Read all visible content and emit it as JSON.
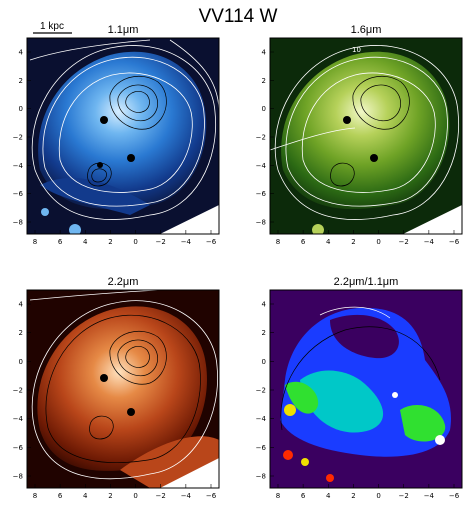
{
  "figure": {
    "title": "VV114 W",
    "scale_bar_label": "1 kpc",
    "contour_label": "10"
  },
  "panels": [
    {
      "id": "p1",
      "title": "1.1μm",
      "colormap": [
        "#0a1030",
        "#123a8c",
        "#2a79d2",
        "#6fb6f0",
        "#d8eeff"
      ]
    },
    {
      "id": "p2",
      "title": "1.6μm",
      "colormap": [
        "#0c2a0a",
        "#2c6a14",
        "#6fa326",
        "#b6d15a",
        "#f2f8c8"
      ]
    },
    {
      "id": "p3",
      "title": "2.2μm",
      "colormap": [
        "#200300",
        "#6e1a04",
        "#b9461a",
        "#e68a46",
        "#ffe2bf"
      ]
    },
    {
      "id": "p4",
      "title": "2.2μm/1.1μm",
      "colormap": [
        "#3a0060",
        "#1a3cff",
        "#00c8c8",
        "#30e030",
        "#f0e000",
        "#ff2a00"
      ]
    }
  ],
  "axes": {
    "x_ticks": [
      "8",
      "6",
      "4",
      "2",
      "0",
      "−2",
      "−4",
      "−6"
    ],
    "y_ticks": [
      "4",
      "2",
      "0",
      "−2",
      "−4",
      "−6",
      "−8"
    ]
  }
}
